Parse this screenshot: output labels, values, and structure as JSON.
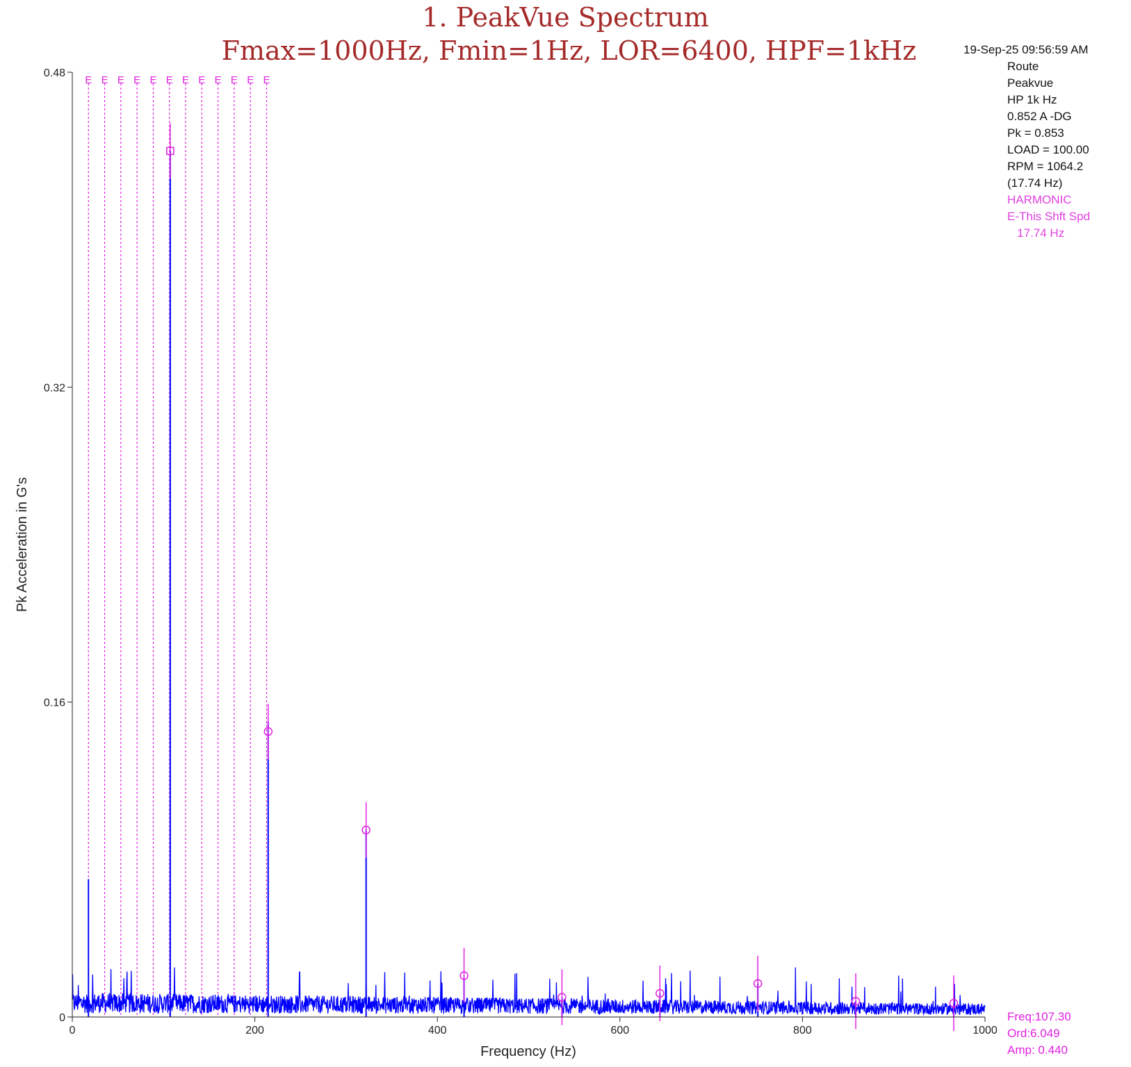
{
  "header": {
    "title_line1": "1. PeakVue Spectrum",
    "title_line2": "Fmax=1000Hz, Fmin=1Hz, LOR=6400, HPF=1kHz"
  },
  "info_panel": {
    "timestamp": "19-Sep-25 09:56:59 AM",
    "lines": [
      "Route",
      "Peakvue",
      "HP 1k Hz",
      "0.852 A -DG",
      "Pk = 0.853",
      "LOAD = 100.00",
      "RPM = 1064.2",
      "(17.74 Hz)"
    ],
    "harmonic_lines": [
      "HARMONIC",
      "E-This Shft Spd",
      "   17.74 Hz"
    ]
  },
  "cursor_readout": {
    "freq": "Freq:107.30",
    "ord": "Ord:6.049",
    "amp": "Amp: 0.440"
  },
  "chart_data": {
    "type": "line",
    "title": "",
    "xlabel": "Frequency (Hz)",
    "ylabel": "Pk Acceleration in G's",
    "xlim": [
      0,
      1000
    ],
    "ylim": [
      0,
      0.48
    ],
    "x_ticks": [
      "0",
      "200",
      "400",
      "600",
      "800",
      "1000"
    ],
    "x_tick_values": [
      0,
      200,
      400,
      600,
      800,
      1000
    ],
    "y_ticks": [
      "0",
      "0.16",
      "0.32",
      "0.48"
    ],
    "y_tick_values": [
      0,
      0.16,
      0.32,
      0.48
    ],
    "grid": false,
    "line_color": "#0000ff",
    "marker_color": "#e020e0",
    "noise_floor": {
      "x_range": [
        0,
        1000
      ],
      "typical_amplitude": 0.008,
      "max_amplitude": 0.032
    },
    "peaks": [
      {
        "x": 17.7,
        "y": 0.07
      },
      {
        "x": 107.3,
        "y": 0.44
      },
      {
        "x": 214.6,
        "y": 0.15
      },
      {
        "x": 321.9,
        "y": 0.095
      },
      {
        "x": 429.2,
        "y": 0.02
      },
      {
        "x": 536.5,
        "y": 0.01
      },
      {
        "x": 643.8,
        "y": 0.012
      },
      {
        "x": 751.1,
        "y": 0.017
      },
      {
        "x": 858.4,
        "y": 0.008
      },
      {
        "x": 965.7,
        "y": 0.007
      }
    ],
    "harmonic_markers": {
      "label": "E",
      "fundamental_hz": 17.74,
      "count": 12
    },
    "cursor_markers": [
      {
        "x": 107.3,
        "y": 0.44,
        "shape": "square"
      },
      {
        "x": 214.6,
        "y": 0.145,
        "shape": "circle"
      },
      {
        "x": 321.9,
        "y": 0.095,
        "shape": "circle"
      },
      {
        "x": 429.2,
        "y": 0.021,
        "shape": "circle"
      },
      {
        "x": 536.5,
        "y": 0.01,
        "shape": "circle"
      },
      {
        "x": 643.8,
        "y": 0.012,
        "shape": "circle"
      },
      {
        "x": 751.1,
        "y": 0.017,
        "shape": "circle"
      },
      {
        "x": 858.4,
        "y": 0.008,
        "shape": "circle"
      },
      {
        "x": 965.7,
        "y": 0.007,
        "shape": "circle"
      }
    ]
  }
}
